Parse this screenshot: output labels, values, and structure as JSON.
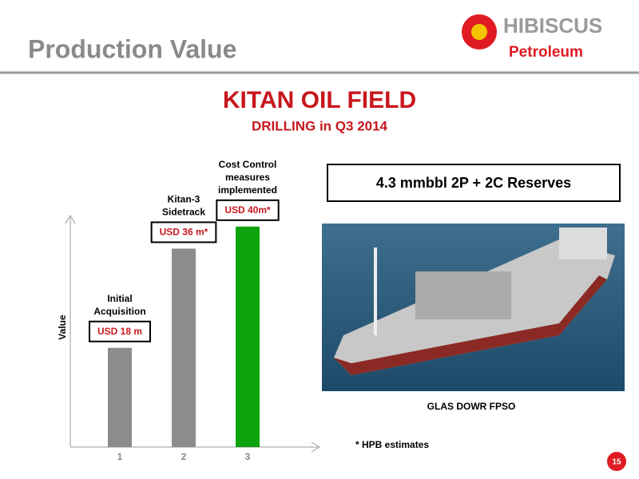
{
  "header": {
    "title": "Production Value",
    "logo_top": "HIBISCUS",
    "logo_bottom": "Petroleum"
  },
  "title": "KITAN OIL FIELD",
  "subtitle": "DRILLING in Q3 2014",
  "reserves_box": "4.3 mmbbl 2P + 2C Reserves",
  "photo_caption": "GLAS DOWR FPSO",
  "footnote": "* HPB estimates",
  "page_number": "15",
  "chart_data": {
    "type": "bar",
    "ylabel": "Value",
    "categories": [
      "1",
      "2",
      "3"
    ],
    "values": [
      18,
      36,
      40
    ],
    "value_labels": [
      "USD 18 m",
      "USD 36 m*",
      "USD 40m*"
    ],
    "notes": [
      [
        "Initial",
        "Acquisition"
      ],
      [
        "Kitan-3",
        "Sidetrack"
      ],
      [
        "Cost Control",
        "measures",
        "implemented"
      ]
    ],
    "colors": [
      "#8c8c8c",
      "#8c8c8c",
      "#0ea20e"
    ],
    "ylim": [
      0,
      42
    ]
  }
}
